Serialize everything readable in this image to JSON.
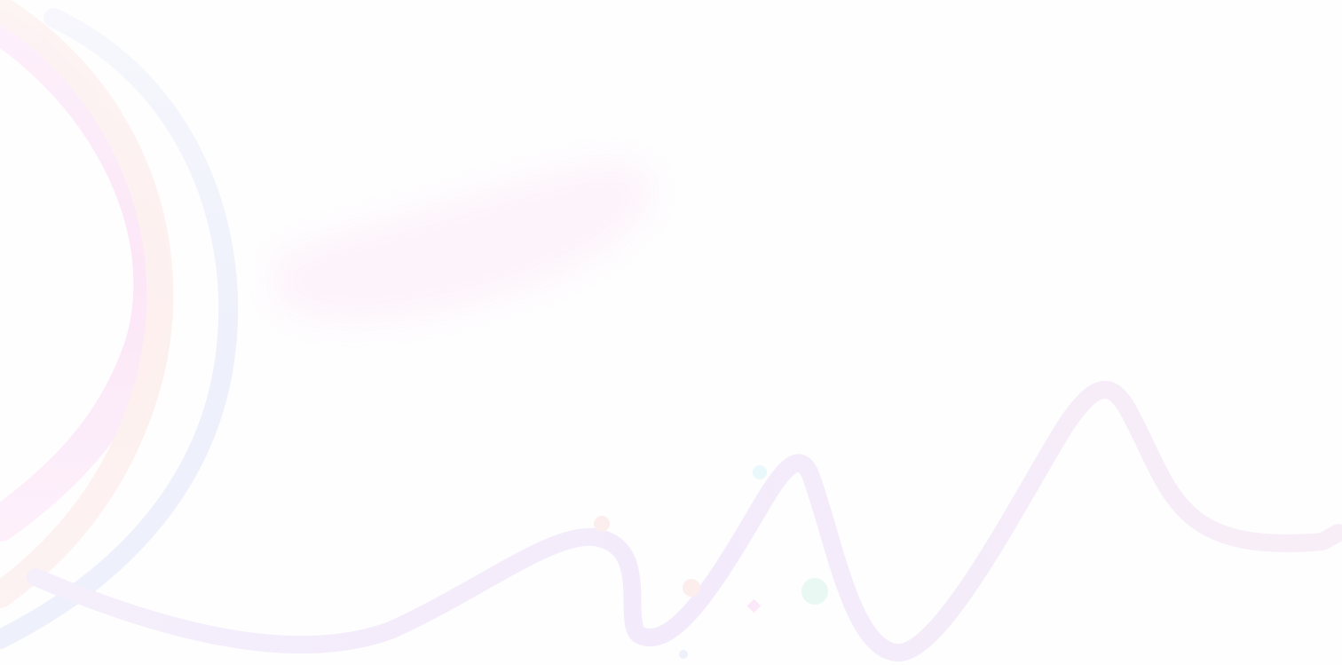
{
  "page": {
    "background_color": "#fefefe"
  },
  "decorations": {
    "palette": {
      "lavender": "#f3ecfb",
      "pink": "#fbe8f8",
      "peach": "#fdeeee",
      "blue": "#eef2fb",
      "mint": "#eaf8f3",
      "cyan": "#e8f8fb"
    },
    "elements": [
      "left-arc-pink",
      "left-arc-peach",
      "left-arc-blue",
      "pink-blur-blob",
      "lavender-wave-ribbon",
      "confetti-dots"
    ]
  }
}
